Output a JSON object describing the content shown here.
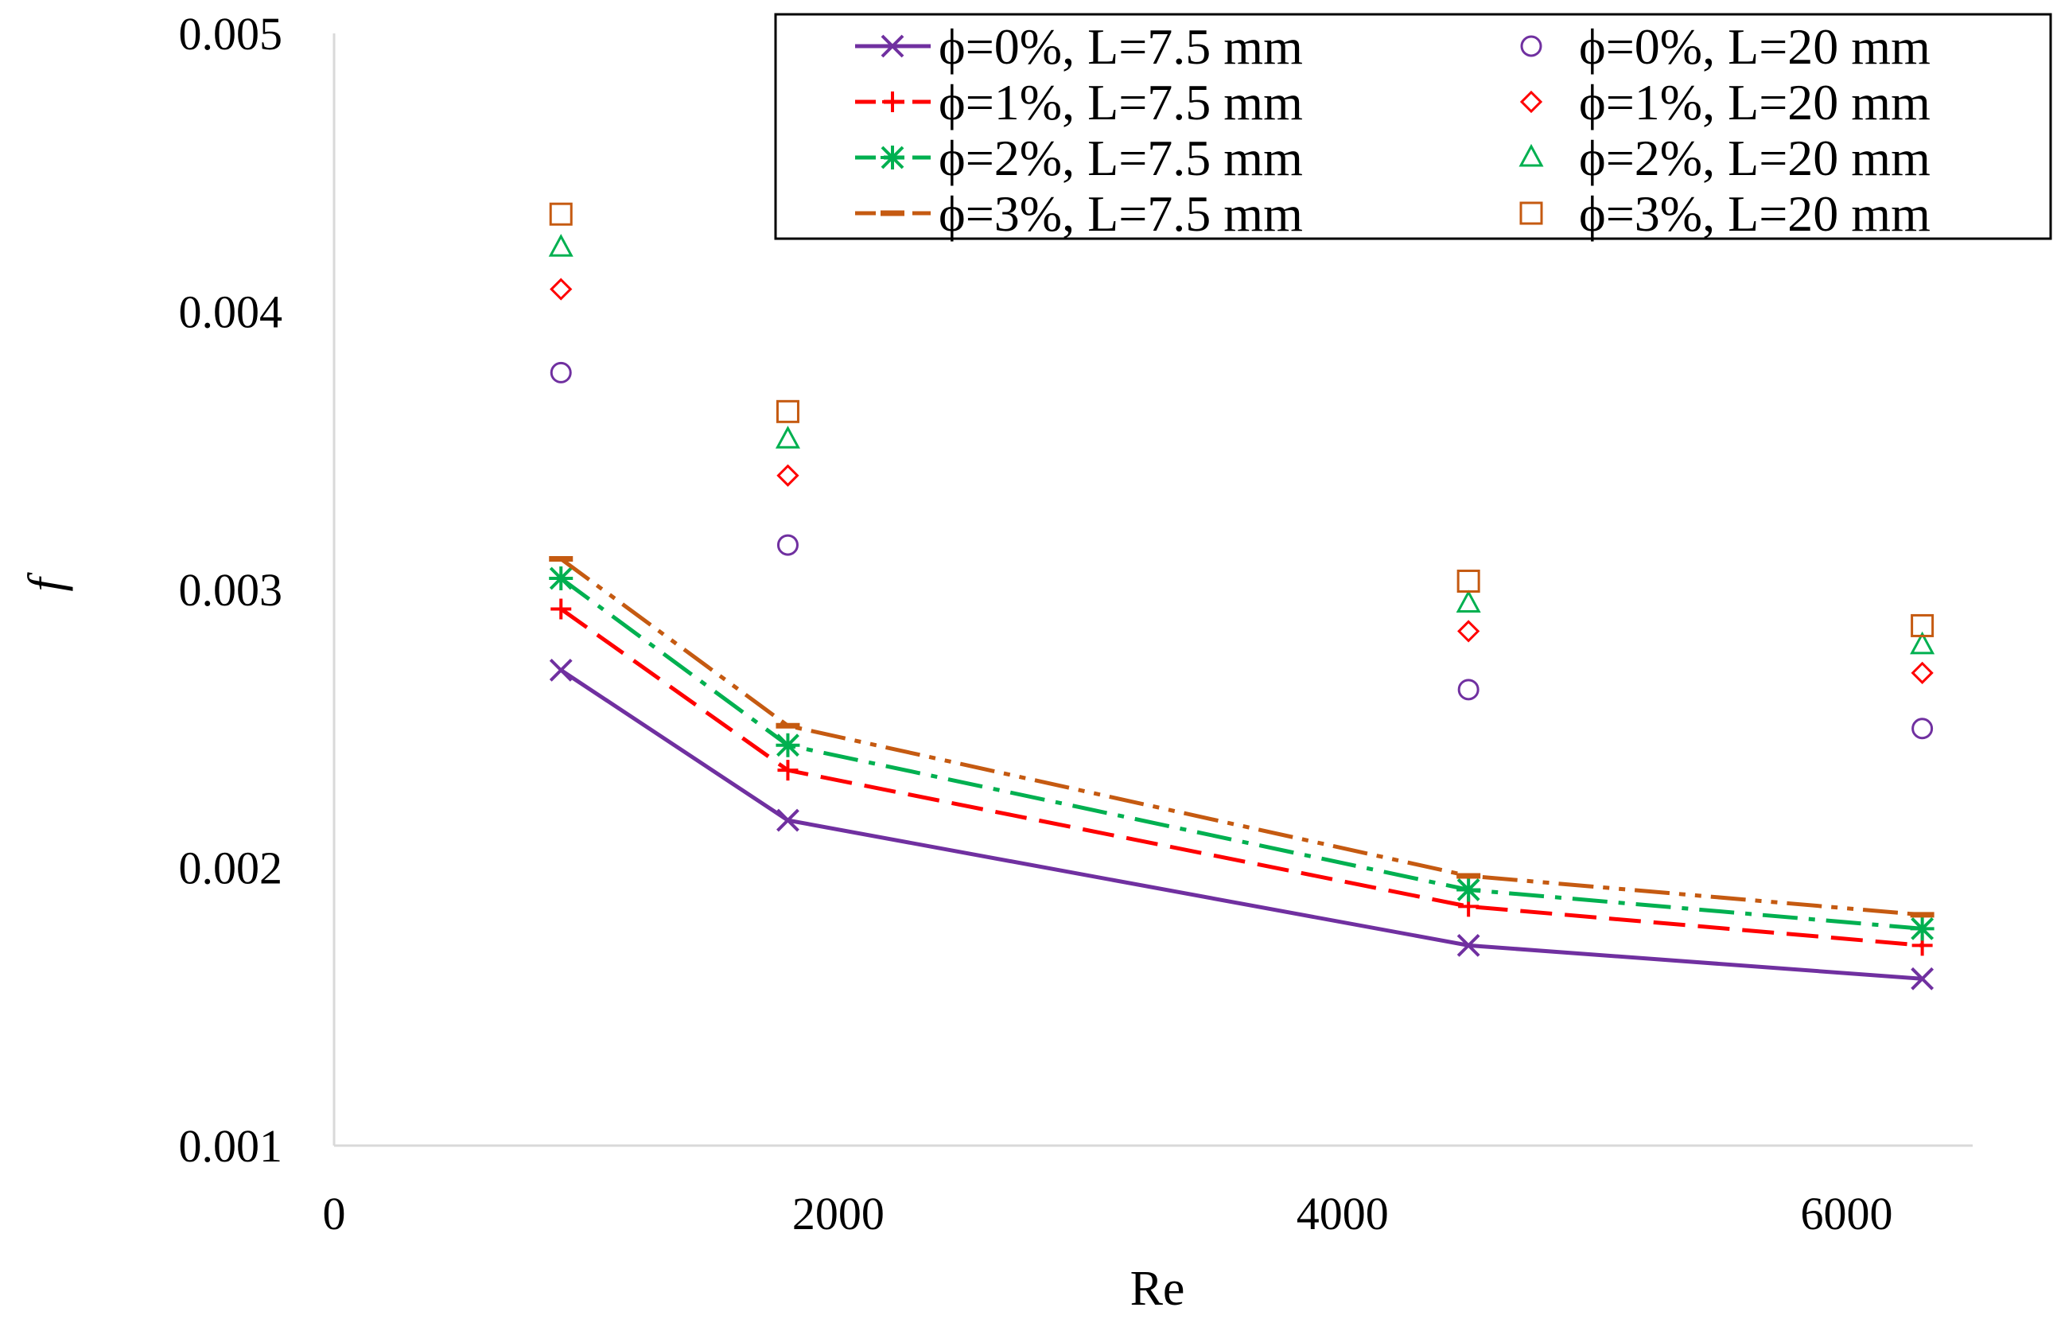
{
  "chart_data": {
    "type": "line",
    "title": "",
    "xlabel": "Re",
    "ylabel": "f",
    "xlim": [
      0,
      6500
    ],
    "ylim": [
      0.001,
      0.005
    ],
    "xticks": [
      "0",
      "2000",
      "4000",
      "6000"
    ],
    "yticks": [
      "0.001",
      "0.002",
      "0.003",
      "0.004",
      "0.005"
    ],
    "grid": false,
    "legend_position": "top-right",
    "x": [
      900,
      1800,
      4500,
      6300
    ],
    "series": [
      {
        "name": "ϕ=0%, L=7.5 mm",
        "values": [
          0.00271,
          0.00217,
          0.00172,
          0.0016
        ],
        "color": "#7030a0",
        "marker": "x",
        "line": "solid"
      },
      {
        "name": "ϕ=1%, L=7.5 mm",
        "values": [
          0.00293,
          0.00235,
          0.00186,
          0.00172
        ],
        "color": "#ff0000",
        "marker": "+",
        "line": "dashed"
      },
      {
        "name": "ϕ=2%, L=7.5 mm",
        "values": [
          0.00304,
          0.00244,
          0.00192,
          0.00178
        ],
        "color": "#00b050",
        "marker": "star",
        "line": "dashdot"
      },
      {
        "name": "ϕ=3%, L=7.5 mm",
        "values": [
          0.00311,
          0.00251,
          0.00197,
          0.00183
        ],
        "color": "#c55a11",
        "marker": "dash",
        "line": "dashdotdot"
      },
      {
        "name": "ϕ=0%, L=20 mm",
        "values": [
          0.00378,
          0.00316,
          0.00264,
          0.0025
        ],
        "color": "#7030a0",
        "marker": "circle",
        "line": "none"
      },
      {
        "name": "ϕ=1%, L=20 mm",
        "values": [
          0.00408,
          0.00341,
          0.00285,
          0.0027
        ],
        "color": "#ff0000",
        "marker": "diamond",
        "line": "none"
      },
      {
        "name": "ϕ=2%, L=20 mm",
        "values": [
          0.00423,
          0.00354,
          0.00295,
          0.0028
        ],
        "color": "#00b050",
        "marker": "triangle",
        "line": "none"
      },
      {
        "name": "ϕ=3%, L=20 mm",
        "values": [
          0.00435,
          0.00364,
          0.00303,
          0.00287
        ],
        "color": "#c55a11",
        "marker": "square",
        "line": "none"
      }
    ]
  }
}
